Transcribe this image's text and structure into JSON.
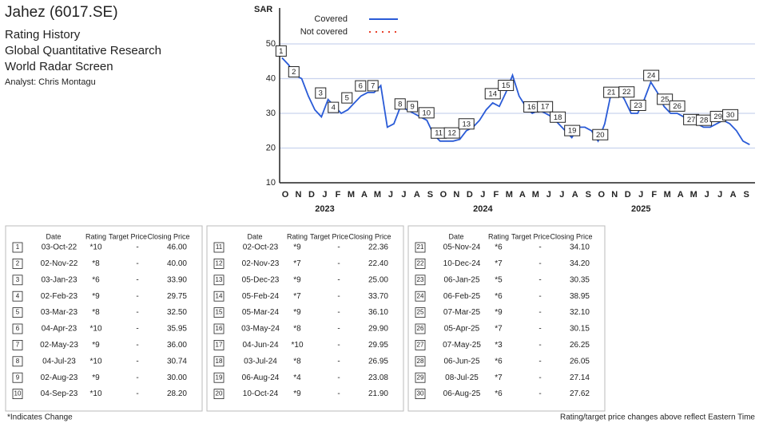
{
  "header": {
    "title": "Jahez (6017.SE)",
    "lines": [
      "Rating History",
      "Global Quantitative Research",
      "World Radar Screen"
    ],
    "analyst": "Analyst: Chris Montagu"
  },
  "chart_data": {
    "type": "line",
    "y_unit": "SAR",
    "legend": [
      {
        "name": "Covered",
        "color": "#2a5bd7",
        "style": "solid"
      },
      {
        "name": "Not covered",
        "color": "#e8412c",
        "style": "dotted"
      }
    ],
    "xticks": [
      "O",
      "N",
      "D",
      "J",
      "F",
      "M",
      "A",
      "M",
      "J",
      "J",
      "A",
      "S",
      "O",
      "N",
      "D",
      "J",
      "F",
      "M",
      "A",
      "M",
      "J",
      "J",
      "A",
      "S",
      "O",
      "N",
      "D",
      "J",
      "F",
      "M",
      "A",
      "M",
      "J",
      "J",
      "A",
      "S"
    ],
    "years": [
      "2023",
      "2024",
      "2025"
    ],
    "ylim": [
      10,
      50
    ],
    "yticks": [
      10,
      20,
      30,
      40,
      50
    ],
    "grid": true,
    "series": [
      {
        "name": "Covered",
        "color": "#2a5bd7",
        "values": [
          46,
          44,
          41,
          40,
          35,
          31,
          29,
          34,
          32,
          30,
          31,
          33,
          35,
          36,
          36,
          38,
          26,
          27,
          32,
          31,
          30,
          29,
          28,
          24,
          22,
          22,
          22,
          22.5,
          25,
          26,
          28,
          31,
          33,
          32,
          36,
          41,
          35,
          32,
          30,
          31,
          30,
          29,
          27,
          25,
          23,
          26,
          26,
          25,
          22,
          27,
          36,
          37,
          34,
          30,
          30,
          34,
          39,
          36,
          32,
          30,
          30,
          29,
          27,
          27,
          26,
          26,
          27,
          28,
          27,
          25,
          22,
          21
        ]
      }
    ]
  },
  "tables": [
    {
      "columns": [
        "Date",
        "Rating",
        "Target Price",
        "Closing Price"
      ],
      "rows": [
        [
          1,
          "03-Oct-22",
          "*10",
          "-",
          "46.00"
        ],
        [
          2,
          "02-Nov-22",
          "*8",
          "-",
          "40.00"
        ],
        [
          3,
          "03-Jan-23",
          "*6",
          "-",
          "33.90"
        ],
        [
          4,
          "02-Feb-23",
          "*9",
          "-",
          "29.75"
        ],
        [
          5,
          "03-Mar-23",
          "*8",
          "-",
          "32.50"
        ],
        [
          6,
          "04-Apr-23",
          "*10",
          "-",
          "35.95"
        ],
        [
          7,
          "02-May-23",
          "*9",
          "-",
          "36.00"
        ],
        [
          8,
          "04-Jul-23",
          "*10",
          "-",
          "30.74"
        ],
        [
          9,
          "02-Aug-23",
          "*9",
          "-",
          "30.00"
        ],
        [
          10,
          "04-Sep-23",
          "*10",
          "-",
          "28.20"
        ]
      ]
    },
    {
      "columns": [
        "Date",
        "Rating",
        "Target Price",
        "Closing Price"
      ],
      "rows": [
        [
          11,
          "02-Oct-23",
          "*9",
          "-",
          "22.36"
        ],
        [
          12,
          "02-Nov-23",
          "*7",
          "-",
          "22.40"
        ],
        [
          13,
          "05-Dec-23",
          "*9",
          "-",
          "25.00"
        ],
        [
          14,
          "05-Feb-24",
          "*7",
          "-",
          "33.70"
        ],
        [
          15,
          "05-Mar-24",
          "*9",
          "-",
          "36.10"
        ],
        [
          16,
          "03-May-24",
          "*8",
          "-",
          "29.90"
        ],
        [
          17,
          "04-Jun-24",
          "*10",
          "-",
          "29.95"
        ],
        [
          18,
          "03-Jul-24",
          "*8",
          "-",
          "26.95"
        ],
        [
          19,
          "06-Aug-24",
          "*4",
          "-",
          "23.08"
        ],
        [
          20,
          "10-Oct-24",
          "*9",
          "-",
          "21.90"
        ]
      ]
    },
    {
      "columns": [
        "Date",
        "Rating",
        "Target Price",
        "Closing Price"
      ],
      "rows": [
        [
          21,
          "05-Nov-24",
          "*6",
          "-",
          "34.10"
        ],
        [
          22,
          "10-Dec-24",
          "*7",
          "-",
          "34.20"
        ],
        [
          23,
          "06-Jan-25",
          "*5",
          "-",
          "30.35"
        ],
        [
          24,
          "06-Feb-25",
          "*6",
          "-",
          "38.95"
        ],
        [
          25,
          "07-Mar-25",
          "*9",
          "-",
          "32.10"
        ],
        [
          26,
          "05-Apr-25",
          "*7",
          "-",
          "30.15"
        ],
        [
          27,
          "07-May-25",
          "*3",
          "-",
          "26.25"
        ],
        [
          28,
          "06-Jun-25",
          "*6",
          "-",
          "26.05"
        ],
        [
          29,
          "08-Jul-25",
          "*7",
          "-",
          "27.14"
        ],
        [
          30,
          "06-Aug-25",
          "*6",
          "-",
          "27.62"
        ]
      ]
    }
  ],
  "footnotes": {
    "left": "*Indicates Change",
    "right": "Rating/target price changes above reflect Eastern Time"
  }
}
